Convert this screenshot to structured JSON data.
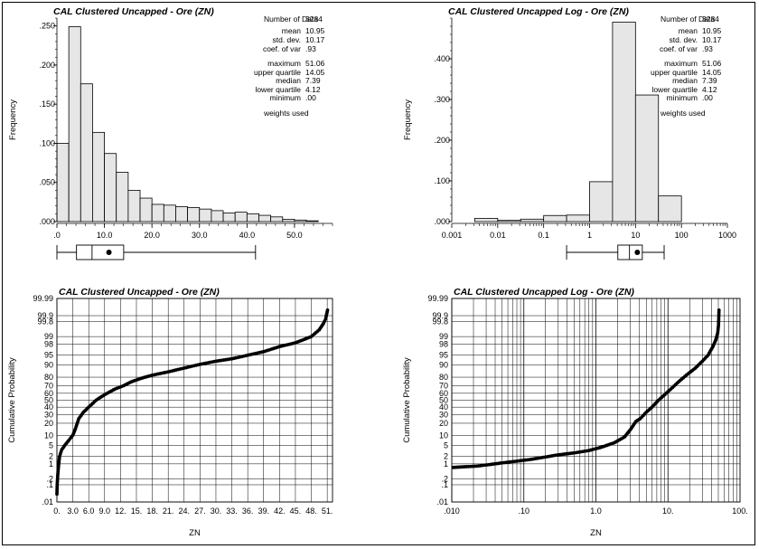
{
  "chart_data": [
    {
      "id": "hist_lin",
      "type": "bar",
      "title": "CAL Clustered Uncapped - Ore (ZN)",
      "ylabel": "Frequency",
      "xlabel": "",
      "xlim": [
        0,
        58
      ],
      "ylim": [
        0,
        0.26
      ],
      "xticks": [
        0,
        10,
        20,
        30,
        40,
        50
      ],
      "xtick_labels": [
        ".0",
        "10.0",
        "20.0",
        "30.0",
        "40.0",
        "50.0"
      ],
      "yticks": [
        0,
        0.05,
        0.1,
        0.15,
        0.2,
        0.25
      ],
      "ytick_labels": [
        ".000",
        ".050",
        ".100",
        ".150",
        ".200",
        ".250"
      ],
      "bin_width": 2.5,
      "bin_start": 0,
      "values": [
        0.1,
        0.249,
        0.176,
        0.114,
        0.087,
        0.063,
        0.04,
        0.03,
        0.022,
        0.021,
        0.019,
        0.018,
        0.016,
        0.014,
        0.011,
        0.012,
        0.01,
        0.008,
        0.006,
        0.003,
        0.002,
        0.001
      ],
      "boxplot": {
        "min": 0.0,
        "q1": 4.12,
        "median": 7.39,
        "q3": 14.05,
        "mean": 10.95,
        "max": 41.8
      }
    },
    {
      "id": "hist_log",
      "type": "bar",
      "title": "CAL Clustered Uncapped Log - Ore (ZN)",
      "ylabel": "Frequency",
      "xlabel": "",
      "xscale": "log",
      "xlim": [
        0.001,
        1000
      ],
      "ylim": [
        0,
        0.5
      ],
      "xticks": [
        0.001,
        0.01,
        0.1,
        1,
        10,
        100,
        1000
      ],
      "xtick_labels": [
        "0.001",
        "0.01",
        "0.1",
        "1",
        "10",
        "100",
        "1000"
      ],
      "yticks": [
        0,
        0.1,
        0.2,
        0.3,
        0.4
      ],
      "ytick_labels": [
        ".000",
        ".100",
        ".200",
        ".300",
        ".400"
      ],
      "bins": [
        [
          0.00316,
          0.01
        ],
        [
          0.01,
          0.0316
        ],
        [
          0.0316,
          0.1
        ],
        [
          0.1,
          0.316
        ],
        [
          0.316,
          1
        ],
        [
          1,
          3.16
        ],
        [
          3.16,
          10
        ],
        [
          10,
          31.6
        ],
        [
          31.6,
          100
        ]
      ],
      "values": [
        0.008,
        0.003,
        0.006,
        0.015,
        0.016,
        0.098,
        0.49,
        0.311,
        0.063
      ],
      "boxplot": {
        "min": 0.316,
        "q1": 4.12,
        "median": 7.39,
        "q3": 14.05,
        "mean": 10.95,
        "max": 42
      }
    },
    {
      "id": "prob_lin",
      "type": "scatter",
      "title": "CAL Clustered Uncapped - Ore (ZN)",
      "xlabel": "ZN",
      "ylabel": "Cumulative Probability",
      "yscale": "probability",
      "xlim": [
        0,
        52
      ],
      "xticks": [
        0,
        3,
        6,
        9,
        12,
        15,
        18,
        21,
        24,
        27,
        30,
        33,
        36,
        39,
        42,
        45,
        48,
        51
      ],
      "xtick_labels": [
        "0.",
        "3.0",
        "6.0",
        "9.0",
        "12.",
        "15.",
        "18.",
        "21.",
        "24.",
        "27.",
        "30.",
        "33.",
        "36.",
        "39.",
        "42.",
        "45.",
        "48.",
        "51."
      ],
      "yticks": [
        0.01,
        0.1,
        0.2,
        1,
        2,
        5,
        10,
        20,
        30,
        40,
        50,
        60,
        70,
        80,
        90,
        95,
        98,
        99,
        99.8,
        99.9,
        99.99
      ],
      "ytick_labels": [
        ".01",
        ".1",
        ".2",
        "1",
        "2",
        "5",
        "10",
        "20",
        "30",
        "40",
        "50",
        "60",
        "70",
        "80",
        "90",
        "95",
        "98",
        "99",
        "99.8",
        "99.9",
        "99.99"
      ],
      "curve": [
        [
          0.0,
          0.03
        ],
        [
          0.05,
          0.1
        ],
        [
          0.15,
          0.3
        ],
        [
          0.3,
          0.8
        ],
        [
          0.5,
          2.0
        ],
        [
          0.9,
          3.5
        ],
        [
          1.5,
          5
        ],
        [
          2.2,
          7
        ],
        [
          3.0,
          10
        ],
        [
          3.5,
          15
        ],
        [
          4.12,
          25
        ],
        [
          5.0,
          33
        ],
        [
          6.0,
          40
        ],
        [
          7.39,
          50
        ],
        [
          9.0,
          58
        ],
        [
          11.0,
          66
        ],
        [
          12.5,
          70
        ],
        [
          14.05,
          75
        ],
        [
          16.0,
          79
        ],
        [
          18.0,
          82
        ],
        [
          21.0,
          85
        ],
        [
          24.0,
          88
        ],
        [
          27.0,
          90.5
        ],
        [
          30.0,
          92.3
        ],
        [
          33.0,
          93.5
        ],
        [
          36.0,
          95.0
        ],
        [
          39.0,
          96.2
        ],
        [
          42.0,
          97.5
        ],
        [
          45.0,
          98.2
        ],
        [
          48.0,
          99.0
        ],
        [
          49.5,
          99.5
        ],
        [
          50.3,
          99.75
        ],
        [
          50.7,
          99.85
        ],
        [
          51.06,
          99.95
        ]
      ]
    },
    {
      "id": "prob_log",
      "type": "scatter",
      "title": "CAL Clustered Uncapped Log - Ore (ZN)",
      "xlabel": "ZN",
      "ylabel": "Cumulative Probability",
      "xscale": "log",
      "yscale": "probability",
      "xlim": [
        0.01,
        100
      ],
      "xticks": [
        0.01,
        0.1,
        1,
        10,
        100
      ],
      "xtick_labels": [
        ".010",
        ".10",
        "1.0",
        "10.",
        "100."
      ],
      "yticks": [
        0.01,
        0.1,
        0.2,
        1,
        2,
        5,
        10,
        20,
        30,
        40,
        50,
        60,
        70,
        80,
        90,
        95,
        98,
        99,
        99.8,
        99.9,
        99.99
      ],
      "ytick_labels": [
        ".01",
        ".1",
        ".2",
        "1",
        "2",
        "5",
        "10",
        "20",
        "30",
        "40",
        "50",
        "60",
        "70",
        "80",
        "90",
        "95",
        "98",
        "99",
        "99.8",
        "99.9",
        "99.99"
      ],
      "curve": [
        [
          0.0105,
          0.7
        ],
        [
          0.015,
          0.75
        ],
        [
          0.022,
          0.8
        ],
        [
          0.035,
          0.95
        ],
        [
          0.05,
          1.1
        ],
        [
          0.08,
          1.3
        ],
        [
          0.12,
          1.5
        ],
        [
          0.2,
          1.9
        ],
        [
          0.3,
          2.3
        ],
        [
          0.5,
          2.7
        ],
        [
          0.8,
          3.3
        ],
        [
          1.2,
          4.3
        ],
        [
          1.8,
          6.0
        ],
        [
          2.5,
          9.0
        ],
        [
          3.0,
          14
        ],
        [
          3.6,
          22
        ],
        [
          4.12,
          25
        ],
        [
          5.0,
          33
        ],
        [
          6.0,
          40
        ],
        [
          7.39,
          50
        ],
        [
          9.0,
          58
        ],
        [
          11.0,
          66
        ],
        [
          14.05,
          75
        ],
        [
          18.0,
          82
        ],
        [
          24.0,
          88
        ],
        [
          30.0,
          92.3
        ],
        [
          36.0,
          95.0
        ],
        [
          42.0,
          97.5
        ],
        [
          46.0,
          98.6
        ],
        [
          49.0,
          99.3
        ],
        [
          50.3,
          99.7
        ],
        [
          51.06,
          99.95
        ]
      ]
    }
  ],
  "stats": {
    "labels": [
      "Number of Data",
      "mean",
      "std. dev.",
      "coef. of var",
      "maximum",
      "upper quartile",
      "median",
      "lower quartile",
      "minimum",
      "weights used"
    ],
    "lin_values": [
      "3284",
      "10.95",
      "10.17",
      ".93",
      "51.06",
      "14.05",
      "7.39",
      "4.12",
      ".00",
      ""
    ],
    "log_values": [
      "3284",
      "10.95",
      "10.17",
      ".93",
      "51.06",
      "14.05",
      "7.39",
      "4.12",
      ".00",
      ""
    ]
  }
}
